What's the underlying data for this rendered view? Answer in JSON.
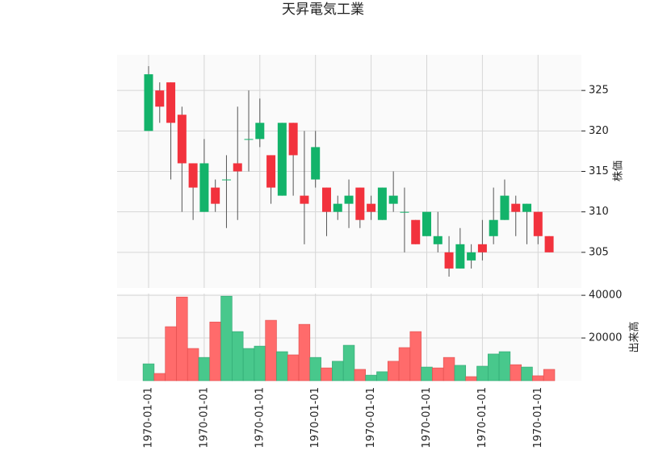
{
  "chart_data": {
    "type": "candlestick",
    "title": "天昇電気工業",
    "ylabel": "株価",
    "volume_label": "出来高",
    "categories": [
      "1970-01-01",
      null,
      null,
      null,
      null,
      "1970-01-01",
      null,
      null,
      null,
      null,
      "1970-01-01",
      null,
      null,
      null,
      null,
      "1970-01-01",
      null,
      null,
      null,
      null,
      "1970-01-01",
      null,
      null,
      null,
      null,
      "1970-01-01",
      null,
      null,
      null,
      null,
      "1970-01-01",
      null,
      null,
      null,
      null,
      "1970-01-01",
      null
    ],
    "open": [
      320,
      325,
      326,
      322,
      316,
      310,
      313,
      314,
      316,
      319,
      319,
      317,
      312,
      321,
      312,
      314,
      313,
      310,
      311,
      313,
      311,
      309,
      311,
      310,
      309,
      307,
      306,
      305,
      303,
      304,
      306,
      307,
      309,
      311,
      310,
      310,
      307
    ],
    "high": [
      328,
      326,
      326,
      323,
      316,
      319,
      314,
      317,
      323,
      325,
      324,
      317,
      321,
      321,
      320,
      320,
      313,
      312,
      314,
      313,
      312,
      313,
      315,
      313,
      309,
      310,
      310,
      307,
      308,
      306,
      309,
      313,
      314,
      312,
      311,
      310,
      307
    ],
    "low": [
      320,
      321,
      314,
      310,
      309,
      310,
      310,
      308,
      309,
      315,
      318,
      311,
      312,
      312,
      306,
      313,
      307,
      309,
      308,
      308,
      309,
      309,
      310,
      305,
      306,
      307,
      305,
      302,
      303,
      303,
      304,
      306,
      309,
      307,
      306,
      306,
      305
    ],
    "close": [
      327,
      323,
      321,
      316,
      313,
      316,
      311,
      314,
      315,
      319,
      321,
      313,
      321,
      317,
      311,
      318,
      310,
      311,
      312,
      309,
      310,
      313,
      312,
      310,
      306,
      310,
      307,
      303,
      306,
      305,
      305,
      309,
      312,
      310,
      311,
      307,
      305
    ],
    "volume": [
      7900,
      3400,
      25300,
      39200,
      15100,
      10900,
      27500,
      39600,
      23000,
      15100,
      16200,
      28300,
      13600,
      12100,
      26400,
      10900,
      6000,
      9100,
      16600,
      5300,
      2600,
      4200,
      9100,
      15500,
      23000,
      6400,
      6000,
      10900,
      7200,
      1900,
      6800,
      12500,
      13600,
      7500,
      6400,
      2300,
      5300
    ],
    "up_color": "#13b36a",
    "down_color": "#f2323d",
    "volume_up_color": "#48c88c",
    "volume_down_color": "#ff6b6b",
    "ylim": [
      300.6,
      329.4
    ],
    "yticks": [
      305,
      310,
      315,
      320,
      325
    ],
    "volume_ylim": [
      0,
      40800
    ],
    "volume_yticks": [
      20000,
      40000
    ],
    "grid": true
  }
}
